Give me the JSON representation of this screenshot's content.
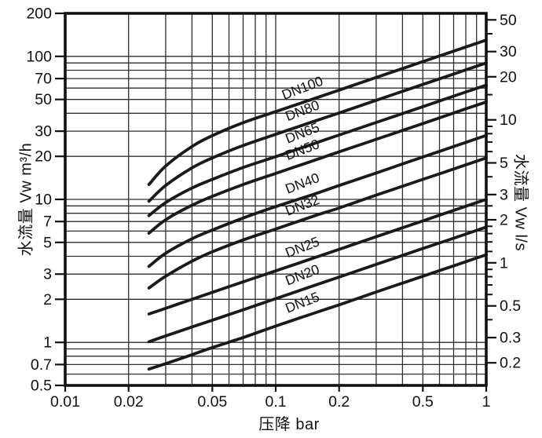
{
  "page": {
    "background": "#ffffff"
  },
  "chart_data": {
    "type": "line",
    "title": "",
    "x_axis": {
      "label": "压降 bar",
      "scale": "log",
      "min": 0.01,
      "max": 1,
      "tick_labels": [
        "0.01",
        "0.02",
        "0.05",
        "0.1",
        "0.2",
        "0.5",
        "1"
      ]
    },
    "y_axis_left": {
      "label": "水流量 Vw m³/h",
      "scale": "log",
      "min": 0.5,
      "max": 200,
      "tick_labels": [
        "200",
        "100",
        "70",
        "50",
        "30",
        "20",
        "10",
        "7",
        "5",
        "3",
        "2",
        "1",
        "0.7",
        "0.5"
      ]
    },
    "y_axis_right": {
      "label": "水流量 Vw l/s",
      "scale": "log",
      "min": 0.14,
      "max": 55.6,
      "conversion": "1 m³/h = 1/3.6 l/s",
      "tick_labels": [
        "50",
        "30",
        "20",
        "10",
        "5",
        "3",
        "2",
        "1",
        "0.5",
        "0.3",
        "0.2"
      ],
      "minor_ticks": [
        40,
        15,
        9,
        8,
        7,
        6,
        4,
        2.5,
        1.8,
        1.6,
        1.4,
        1.2,
        0.9,
        0.8,
        0.7,
        0.6,
        0.4
      ]
    },
    "grid": {
      "on": true,
      "vertical_lines": [
        0.02,
        0.03,
        0.04,
        0.05,
        0.06,
        0.07,
        0.08,
        0.09,
        0.1,
        0.2,
        0.3,
        0.4,
        0.5,
        0.6,
        0.7,
        0.8,
        0.9
      ],
      "horizontal_lines": [
        0.6,
        0.7,
        0.8,
        0.9,
        1,
        2,
        3,
        4,
        5,
        6,
        7,
        8,
        9,
        10,
        20,
        30,
        40,
        50,
        60,
        70,
        80,
        90,
        100
      ]
    },
    "series": [
      {
        "name": "DN100",
        "kv_at_1bar": 130,
        "points": [
          [
            0.025,
            12.7
          ],
          [
            0.03,
            17.1
          ],
          [
            0.04,
            23.4
          ],
          [
            0.05,
            27.9
          ],
          [
            0.07,
            34.4
          ],
          [
            0.1,
            41.1
          ],
          [
            0.15,
            50.3
          ],
          [
            0.2,
            58.1
          ],
          [
            0.3,
            71.2
          ],
          [
            0.5,
            91.9
          ],
          [
            0.7,
            108.8
          ],
          [
            1,
            130
          ]
        ]
      },
      {
        "name": "DN80",
        "kv_at_1bar": 90,
        "points": [
          [
            0.025,
            9.7
          ],
          [
            0.03,
            12.5
          ],
          [
            0.04,
            16.6
          ],
          [
            0.05,
            19.5
          ],
          [
            0.07,
            23.8
          ],
          [
            0.1,
            28.5
          ],
          [
            0.15,
            34.9
          ],
          [
            0.2,
            40.2
          ],
          [
            0.3,
            49.3
          ],
          [
            0.5,
            63.6
          ],
          [
            0.7,
            75.3
          ],
          [
            1,
            90
          ]
        ]
      },
      {
        "name": "DN65",
        "kv_at_1bar": 63,
        "points": [
          [
            0.025,
            7.7
          ],
          [
            0.03,
            9.5
          ],
          [
            0.04,
            12.0
          ],
          [
            0.05,
            13.8
          ],
          [
            0.07,
            16.7
          ],
          [
            0.1,
            19.9
          ],
          [
            0.15,
            24.4
          ],
          [
            0.2,
            28.2
          ],
          [
            0.3,
            34.5
          ],
          [
            0.5,
            44.5
          ],
          [
            0.7,
            52.7
          ],
          [
            1,
            63
          ]
        ]
      },
      {
        "name": "DN50",
        "kv_at_1bar": 48,
        "points": [
          [
            0.025,
            5.8
          ],
          [
            0.03,
            7.2
          ],
          [
            0.04,
            9.1
          ],
          [
            0.05,
            10.5
          ],
          [
            0.07,
            12.7
          ],
          [
            0.1,
            15.2
          ],
          [
            0.15,
            18.6
          ],
          [
            0.2,
            21.5
          ],
          [
            0.3,
            26.3
          ],
          [
            0.5,
            33.9
          ],
          [
            0.7,
            40.2
          ],
          [
            1,
            48
          ]
        ]
      },
      {
        "name": "DN40",
        "kv_at_1bar": 28,
        "points": [
          [
            0.025,
            3.4
          ],
          [
            0.03,
            4.2
          ],
          [
            0.04,
            5.3
          ],
          [
            0.05,
            6.1
          ],
          [
            0.07,
            7.4
          ],
          [
            0.1,
            8.9
          ],
          [
            0.15,
            10.8
          ],
          [
            0.2,
            12.5
          ],
          [
            0.3,
            15.3
          ],
          [
            0.5,
            19.8
          ],
          [
            0.7,
            23.4
          ],
          [
            1,
            28
          ]
        ]
      },
      {
        "name": "DN32",
        "kv_at_1bar": 19.5,
        "points": [
          [
            0.025,
            2.4
          ],
          [
            0.03,
            2.9
          ],
          [
            0.04,
            3.7
          ],
          [
            0.05,
            4.3
          ],
          [
            0.07,
            5.2
          ],
          [
            0.1,
            6.2
          ],
          [
            0.15,
            7.6
          ],
          [
            0.2,
            8.7
          ],
          [
            0.3,
            10.7
          ],
          [
            0.5,
            13.8
          ],
          [
            0.7,
            16.3
          ],
          [
            1,
            19.5
          ]
        ]
      },
      {
        "name": "DN25",
        "kv_at_1bar": 10,
        "points": [
          [
            0.025,
            1.58
          ],
          [
            0.03,
            1.73
          ],
          [
            0.04,
            2.0
          ],
          [
            0.05,
            2.24
          ],
          [
            0.07,
            2.65
          ],
          [
            0.1,
            3.16
          ],
          [
            0.15,
            3.87
          ],
          [
            0.2,
            4.47
          ],
          [
            0.3,
            5.48
          ],
          [
            0.5,
            7.07
          ],
          [
            0.7,
            8.37
          ],
          [
            1,
            10
          ]
        ]
      },
      {
        "name": "DN20",
        "kv_at_1bar": 6.4,
        "points": [
          [
            0.025,
            1.01
          ],
          [
            0.03,
            1.11
          ],
          [
            0.04,
            1.28
          ],
          [
            0.05,
            1.43
          ],
          [
            0.07,
            1.69
          ],
          [
            0.1,
            2.02
          ],
          [
            0.15,
            2.48
          ],
          [
            0.2,
            2.86
          ],
          [
            0.3,
            3.51
          ],
          [
            0.5,
            4.53
          ],
          [
            0.7,
            5.35
          ],
          [
            1,
            6.4
          ]
        ]
      },
      {
        "name": "DN15",
        "kv_at_1bar": 4.1,
        "points": [
          [
            0.025,
            0.65
          ],
          [
            0.03,
            0.71
          ],
          [
            0.04,
            0.82
          ],
          [
            0.05,
            0.92
          ],
          [
            0.07,
            1.08
          ],
          [
            0.1,
            1.3
          ],
          [
            0.15,
            1.59
          ],
          [
            0.2,
            1.83
          ],
          [
            0.3,
            2.25
          ],
          [
            0.5,
            2.9
          ],
          [
            0.7,
            3.43
          ],
          [
            1,
            4.1
          ]
        ]
      }
    ],
    "colors": {
      "curve": "#1a1a1a",
      "grid": "#2e2e2e",
      "border": "#111111",
      "text": "#111111"
    },
    "legend_position": "labels-on-curves"
  }
}
